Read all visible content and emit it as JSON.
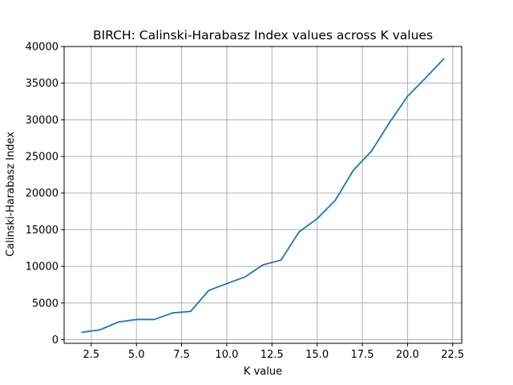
{
  "chart_data": {
    "type": "line",
    "title": "BIRCH: Calinski-Harabasz Index values across K values",
    "xlabel": "K value",
    "ylabel": "Calinski-Harabasz Index",
    "xlim": [
      1.0,
      23.0
    ],
    "ylim": [
      -500,
      40000
    ],
    "xticks": [
      2.5,
      5.0,
      7.5,
      10.0,
      12.5,
      15.0,
      17.5,
      20.0,
      22.5
    ],
    "xtick_labels": [
      "2.5",
      "5.0",
      "7.5",
      "10.0",
      "12.5",
      "15.0",
      "17.5",
      "20.0",
      "22.5"
    ],
    "yticks": [
      0,
      5000,
      10000,
      15000,
      20000,
      25000,
      30000,
      35000,
      40000
    ],
    "ytick_labels": [
      "0",
      "5000",
      "10000",
      "15000",
      "20000",
      "25000",
      "30000",
      "35000",
      "40000"
    ],
    "grid": true,
    "series": [
      {
        "color": "#1f77b4",
        "x": [
          2,
          3,
          4,
          5,
          6,
          7,
          8,
          9,
          10,
          11,
          12,
          13,
          14,
          15,
          16,
          17,
          18,
          19,
          20,
          21,
          22
        ],
        "y": [
          1000,
          1350,
          2400,
          2750,
          2750,
          3650,
          3850,
          6700,
          7650,
          8550,
          10200,
          10850,
          14700,
          16500,
          19000,
          23100,
          25700,
          29600,
          33200,
          35700,
          38300
        ]
      }
    ]
  }
}
